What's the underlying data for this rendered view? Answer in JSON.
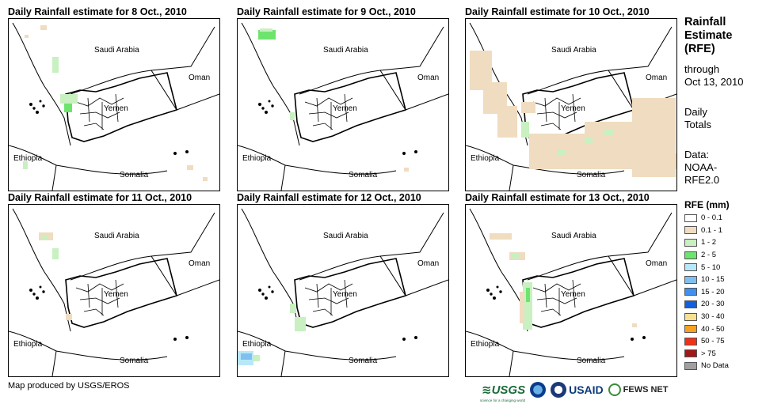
{
  "panels": [
    {
      "title": "Daily Rainfall estimate for 8 Oct., 2010"
    },
    {
      "title": "Daily Rainfall estimate for 9 Oct., 2010"
    },
    {
      "title": "Daily Rainfall estimate for 10 Oct., 2010"
    },
    {
      "title": "Daily Rainfall estimate for 11 Oct., 2010"
    },
    {
      "title": "Daily Rainfall estimate for 12 Oct., 2010"
    },
    {
      "title": "Daily Rainfall estimate for 13 Oct., 2010"
    }
  ],
  "map_labels": {
    "saudi": "Saudi Arabia",
    "oman": "Oman",
    "yemen": "Yemen",
    "ethiopia": "Ethiopia",
    "somalia": "Somalia"
  },
  "sidebar": {
    "title_line1": "Rainfall",
    "title_line2": "Estimate",
    "title_line3": "(RFE)",
    "through_line1": "through",
    "through_line2": "Oct 13, 2010",
    "daily_line1": "Daily",
    "daily_line2": "Totals",
    "data_line1": "Data:",
    "data_line2": "NOAA-",
    "data_line3": "RFE2.0"
  },
  "legend": {
    "title": "RFE (mm)",
    "items": [
      {
        "label": "0 - 0.1",
        "color": "#ffffff"
      },
      {
        "label": "0.1 - 1",
        "color": "#f0dcc0"
      },
      {
        "label": "1 - 2",
        "color": "#c8f0c0"
      },
      {
        "label": "2 - 5",
        "color": "#6ee46e"
      },
      {
        "label": "5 - 10",
        "color": "#b8e8f8"
      },
      {
        "label": "10 - 15",
        "color": "#80c0f0"
      },
      {
        "label": "15 - 20",
        "color": "#4090f0"
      },
      {
        "label": "20 - 30",
        "color": "#1060e0"
      },
      {
        "label": "30 - 40",
        "color": "#f8e090"
      },
      {
        "label": "40 - 50",
        "color": "#f8a020"
      },
      {
        "label": "50 - 75",
        "color": "#f03018"
      },
      {
        "label": "> 75",
        "color": "#a01818"
      },
      {
        "label": "No Data",
        "color": "#a0a0a0"
      }
    ]
  },
  "footer": {
    "credit": "Map produced by USGS/EROS",
    "usgs": "≋USGS",
    "usgs_tagline": "science for a changing world",
    "usaid": "USAID",
    "fews": "FEWS NET"
  }
}
